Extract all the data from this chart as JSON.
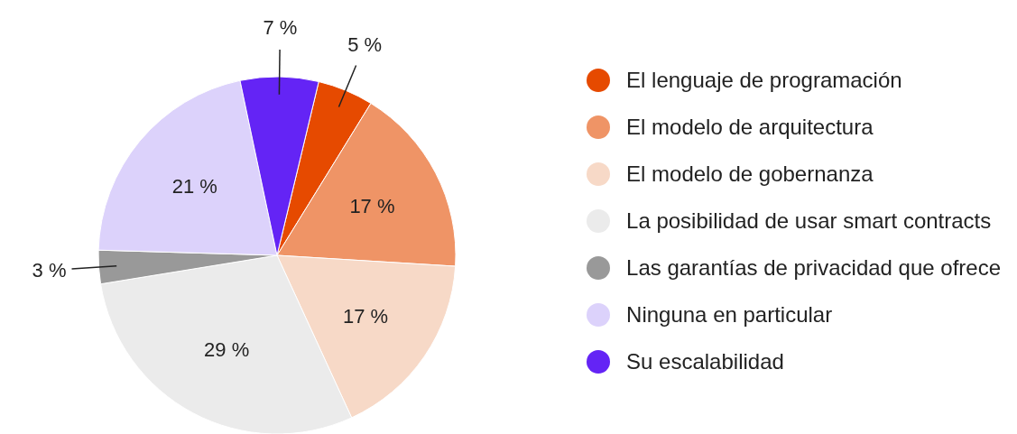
{
  "chart_data": {
    "type": "pie",
    "categories": [
      "El lenguaje de programación",
      "El modelo de arquitectura",
      "El modelo de gobernanza",
      "La posibilidad de usar smart contracts",
      "Las garantías de privacidad que ofrece",
      "Ninguna en particular",
      "Su escalabilidad"
    ],
    "values": [
      5,
      17,
      17,
      29,
      3,
      21,
      7
    ],
    "colors": [
      "#e64a00",
      "#ef9466",
      "#f7d9c7",
      "#ebebeb",
      "#999999",
      "#dcd2fb",
      "#6424f5"
    ],
    "value_labels": [
      "5 %",
      "17 %",
      "17 %",
      "29 %",
      "3 %",
      "21 %",
      "7 %"
    ],
    "legend": "right"
  }
}
